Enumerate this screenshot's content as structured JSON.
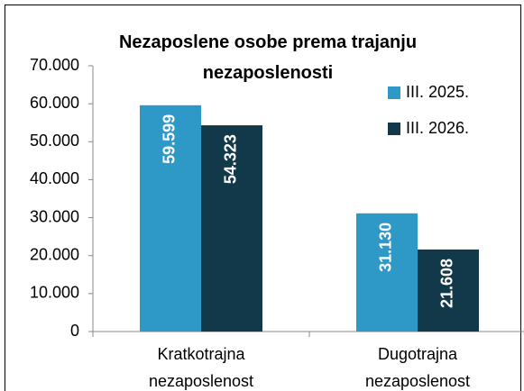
{
  "chart_data": {
    "type": "bar",
    "title": "Nezaposlene osobe prema trajanju nezaposlenosti",
    "categories": [
      "Kratkotrajna nezaposlenost",
      "Dugotrajna nezaposlenost"
    ],
    "series": [
      {
        "name": "III. 2025.",
        "color": "#2e98c6",
        "values": [
          59599,
          31130
        ],
        "value_labels": [
          "59.599",
          "31.130"
        ]
      },
      {
        "name": "III. 2026.",
        "color": "#12394a",
        "values": [
          54323,
          21608
        ],
        "value_labels": [
          "54.323",
          "21.608"
        ]
      }
    ],
    "ylim": [
      0,
      70000
    ],
    "yticks": [
      0,
      {
        "value": 10000,
        "label": "10.000"
      },
      {
        "value": 20000,
        "label": "20.000"
      },
      {
        "value": 30000,
        "label": "30.000"
      },
      {
        "value": 40000,
        "label": "40.000"
      },
      {
        "value": 50000,
        "label": "50.000"
      },
      {
        "value": 60000,
        "label": "60.000"
      },
      {
        "value": 70000,
        "label": "70.000"
      }
    ],
    "legend": "top-right"
  }
}
